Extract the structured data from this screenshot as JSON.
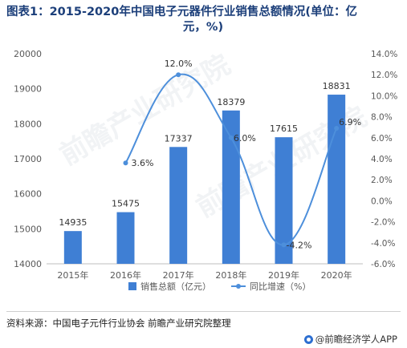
{
  "title_line1": "图表1：2015-2020年中国电子元器件行业销售总额情况(单位：亿",
  "title_line2": "元，%)",
  "watermark": "前瞻产业研究院",
  "source": "资料来源：中国电子元件行业协会 前瞻产业研究院整理",
  "brand": "@前瞻经济学人APP",
  "colors": {
    "bar": "#3f7fd4",
    "line": "#4d8fdb",
    "axis_text": "#595959",
    "grid": "#e6e6e6"
  },
  "chart_data": {
    "type": "bar",
    "categories": [
      "2015年",
      "2016年",
      "2017年",
      "2018年",
      "2019年",
      "2020年"
    ],
    "series": [
      {
        "name": "销售总额（亿元）",
        "type": "bar",
        "axis": "left",
        "values": [
          14935,
          15475,
          17337,
          18379,
          17615,
          18831
        ],
        "labels": [
          "14935",
          "15475",
          "17337",
          "18379",
          "17615",
          "18831"
        ]
      },
      {
        "name": "同比增速（%）",
        "type": "line",
        "axis": "right",
        "values": [
          null,
          3.6,
          12.0,
          6.0,
          -4.2,
          6.9
        ],
        "labels": [
          "",
          "3.6%",
          "12.0%",
          "6.0%",
          "-4.2%",
          "6.9%"
        ]
      }
    ],
    "y_left": {
      "min": 14000,
      "max": 20000,
      "ticks": [
        "14000",
        "15000",
        "16000",
        "17000",
        "18000",
        "19000",
        "20000"
      ]
    },
    "y_right": {
      "min": -6,
      "max": 14,
      "ticks": [
        "-6.0%",
        "-4.0%",
        "-2.0%",
        "0.0%",
        "2.0%",
        "4.0%",
        "6.0%",
        "8.0%",
        "10.0%",
        "12.0%",
        "14.0%"
      ]
    },
    "grid": false,
    "legend_position": "bottom"
  }
}
